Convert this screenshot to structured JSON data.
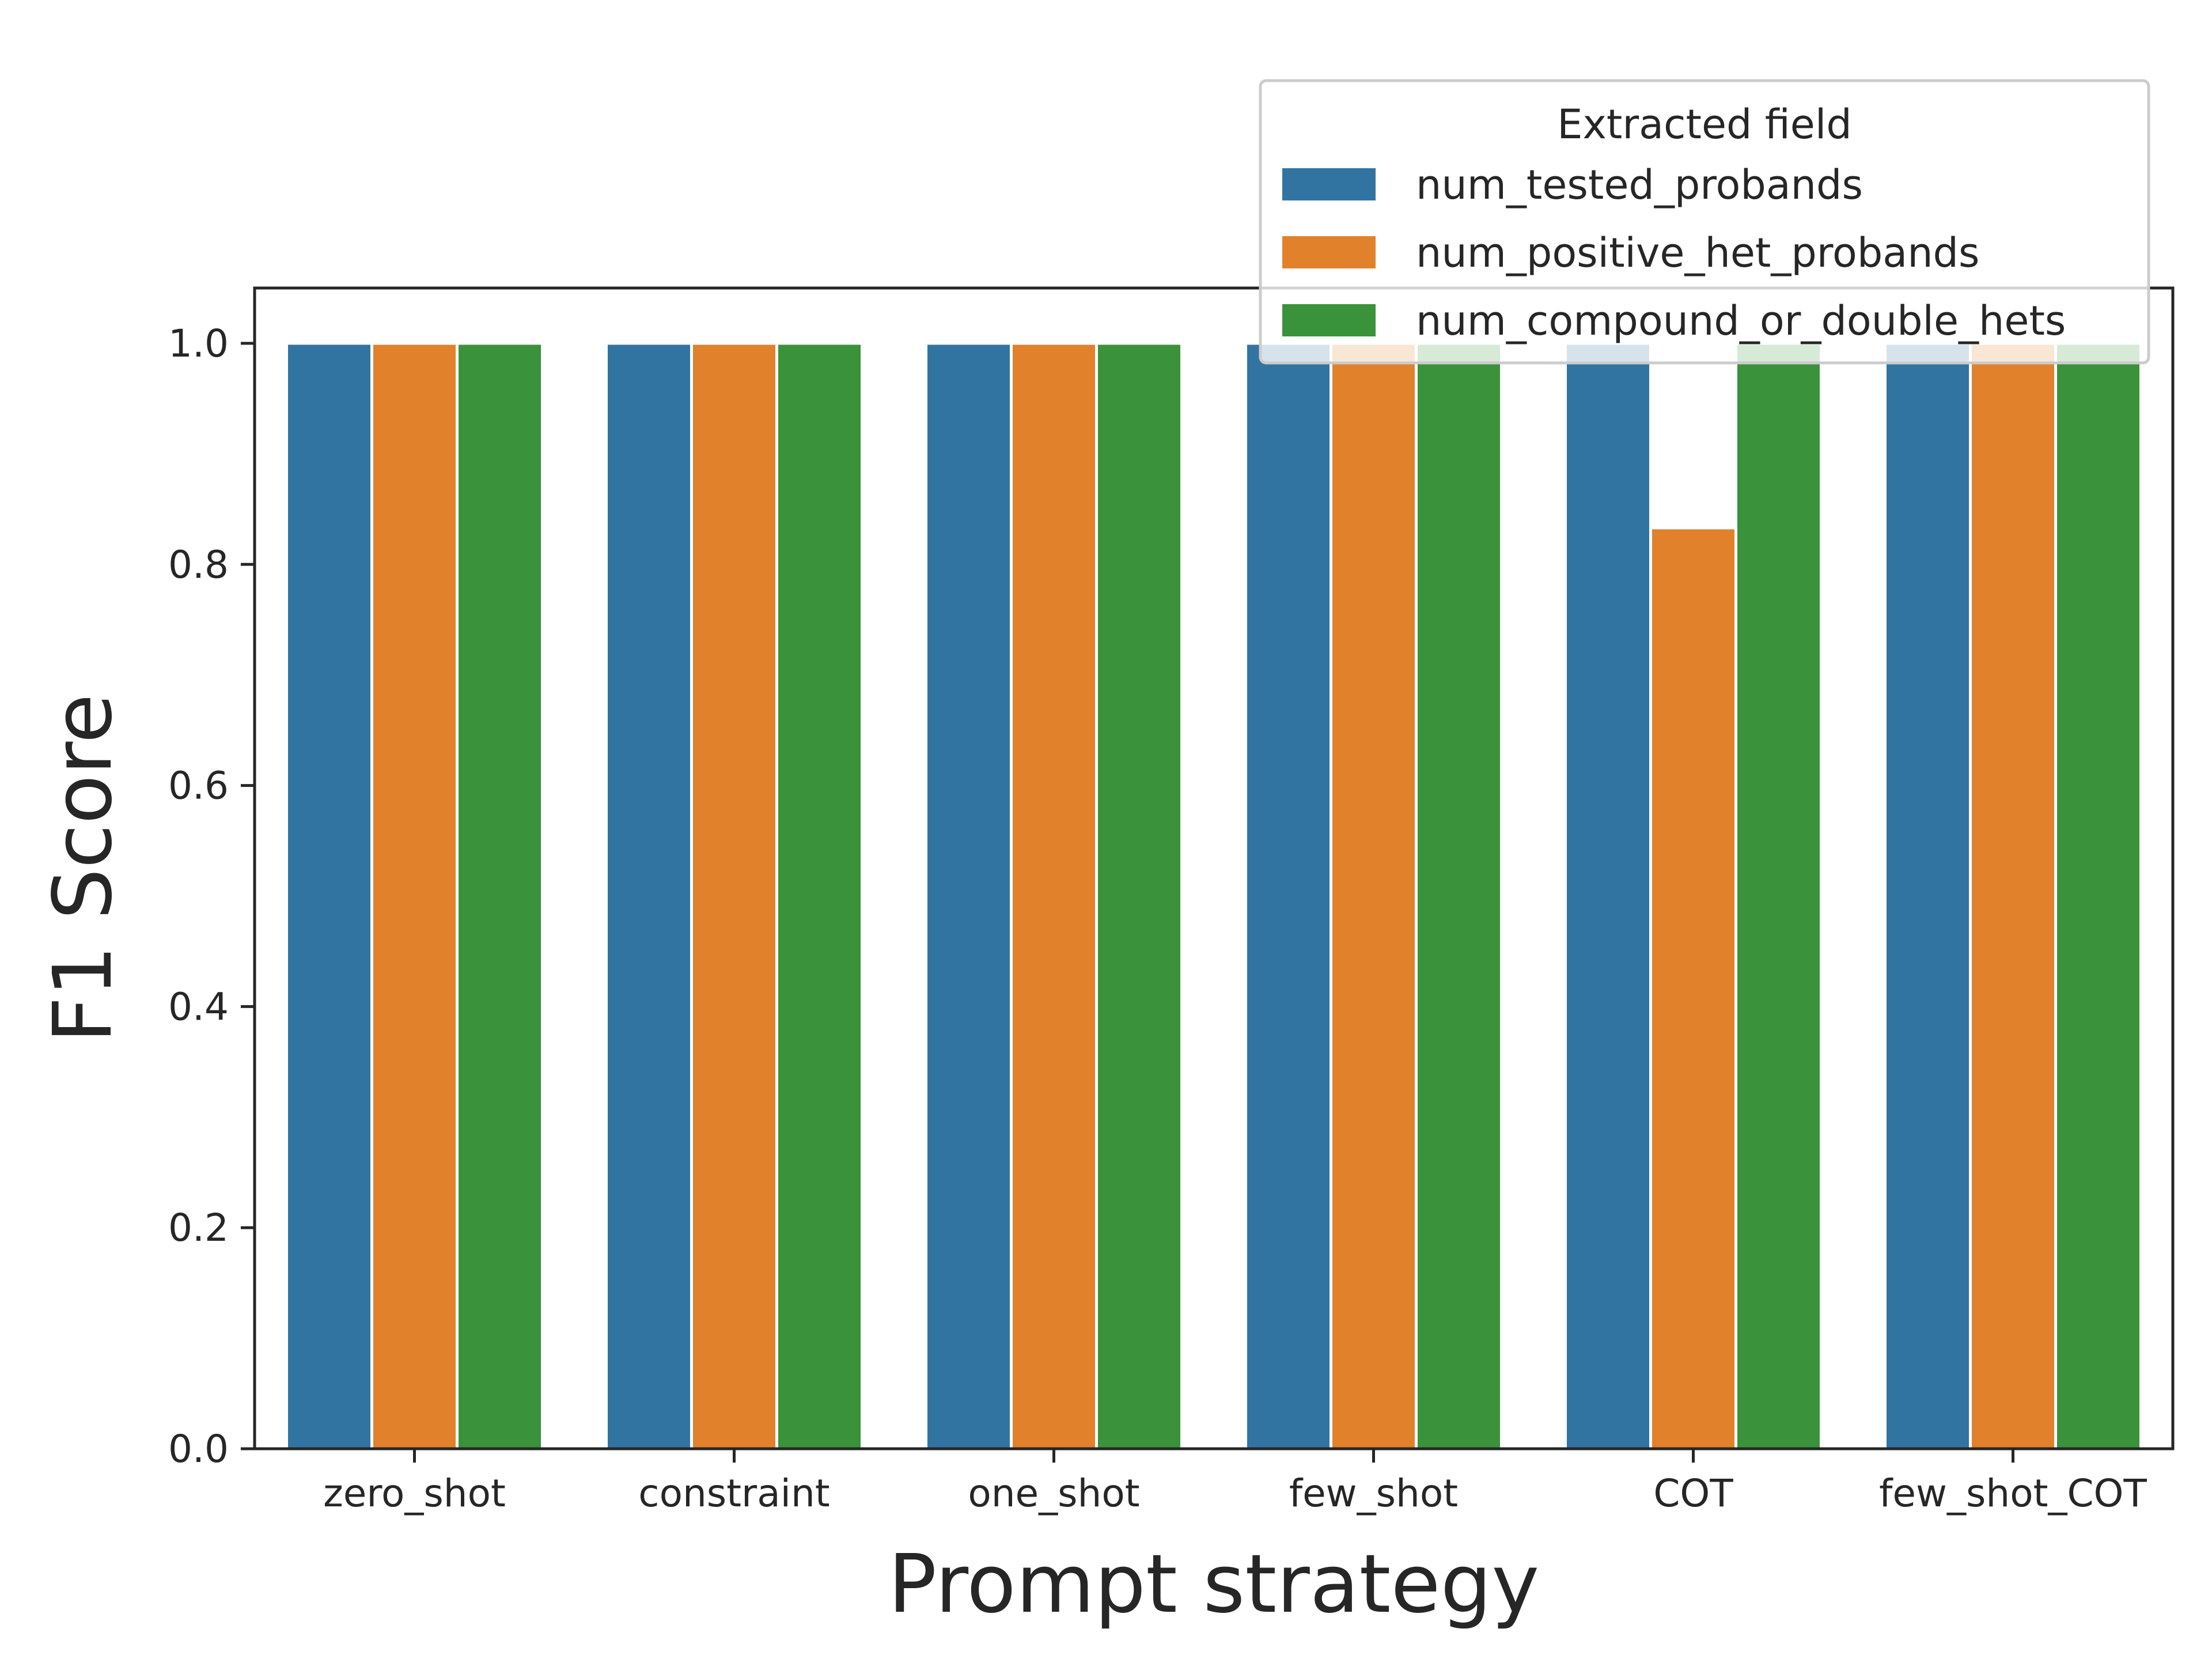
{
  "chart_data": {
    "type": "bar",
    "categories": [
      "zero_shot",
      "constraint",
      "one_shot",
      "few_shot",
      "COT",
      "few_shot_COT"
    ],
    "series": [
      {
        "name": "num_tested_probands",
        "color": "#3274a1",
        "values": [
          1.0,
          1.0,
          1.0,
          1.0,
          1.0,
          1.0
        ]
      },
      {
        "name": "num_positive_het_probands",
        "color": "#e1812c",
        "values": [
          1.0,
          1.0,
          1.0,
          1.0,
          0.833,
          1.0
        ]
      },
      {
        "name": "num_compound_or_double_hets",
        "color": "#3a923a",
        "values": [
          1.0,
          1.0,
          1.0,
          1.0,
          1.0,
          1.0
        ]
      }
    ],
    "xlabel": "Prompt strategy",
    "ylabel": "F1 Score",
    "ylim": [
      0,
      1.05
    ],
    "yticks": [
      0.0,
      0.2,
      0.4,
      0.6,
      0.8,
      1.0
    ],
    "ytick_labels": [
      "0.0",
      "0.2",
      "0.4",
      "0.6",
      "0.8",
      "1.0"
    ],
    "legend_title": "Extracted field",
    "legend_position": "top-right",
    "grid": false
  }
}
